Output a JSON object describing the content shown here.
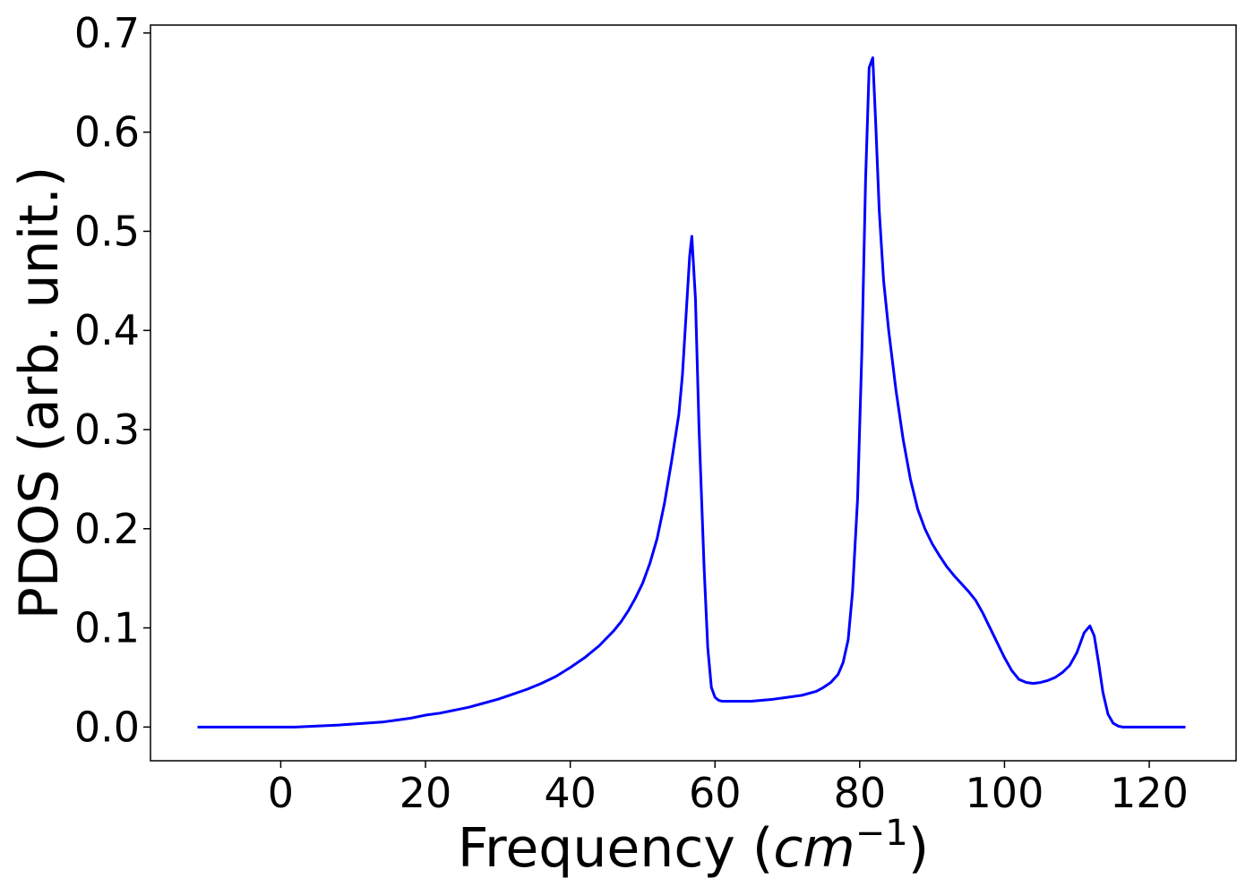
{
  "chart_data": {
    "type": "line",
    "title": "",
    "xlabel": {
      "text": "Frequency (",
      "italic": "cm",
      "superscript": "−1",
      "close": ")"
    },
    "ylabel": "PDOS (arb. unit.)",
    "xlim": [
      -18,
      132
    ],
    "ylim": [
      -0.034,
      0.708
    ],
    "x_ticks": [
      0,
      20,
      40,
      60,
      80,
      100,
      120
    ],
    "x_tick_labels": [
      "0",
      "20",
      "40",
      "60",
      "80",
      "100",
      "120"
    ],
    "y_ticks": [
      0.0,
      0.1,
      0.2,
      0.3,
      0.4,
      0.5,
      0.6,
      0.7
    ],
    "y_tick_labels": [
      "0.0",
      "0.1",
      "0.2",
      "0.3",
      "0.4",
      "0.5",
      "0.6",
      "0.7"
    ],
    "grid": false,
    "legend": "none",
    "series": [
      {
        "color": "#0000ff",
        "x": [
          -11.5,
          0,
          2,
          5,
          8,
          10,
          12,
          14,
          16,
          18,
          20,
          22,
          24,
          26,
          28,
          30,
          32,
          34,
          36,
          38,
          40,
          42,
          44,
          46,
          47,
          48,
          49,
          50,
          51,
          52,
          53,
          54,
          55,
          55.5,
          56,
          56.5,
          56.8,
          57.3,
          57.8,
          58.5,
          59,
          59.5,
          60,
          60.5,
          61,
          62,
          65,
          68,
          70,
          72,
          74,
          75,
          76,
          77,
          77.7,
          78.4,
          79,
          79.7,
          80.3,
          80.8,
          81.3,
          81.8,
          82.2,
          82.7,
          83.3,
          84,
          85,
          86,
          87,
          88,
          89,
          90,
          91,
          92,
          93,
          94,
          95,
          96,
          97,
          98,
          99,
          100,
          101,
          102,
          103,
          104,
          105,
          106,
          107,
          108,
          109,
          110,
          111,
          111.8,
          112.4,
          113,
          113.6,
          114.3,
          115,
          115.7,
          116.3,
          117,
          118,
          120,
          125
        ],
        "y": [
          0.0,
          0.0,
          0.0,
          0.001,
          0.002,
          0.003,
          0.004,
          0.005,
          0.007,
          0.009,
          0.012,
          0.014,
          0.017,
          0.02,
          0.024,
          0.028,
          0.033,
          0.038,
          0.044,
          0.051,
          0.06,
          0.07,
          0.082,
          0.097,
          0.106,
          0.117,
          0.13,
          0.145,
          0.165,
          0.19,
          0.225,
          0.268,
          0.315,
          0.355,
          0.415,
          0.475,
          0.495,
          0.432,
          0.3,
          0.16,
          0.08,
          0.04,
          0.03,
          0.027,
          0.026,
          0.026,
          0.026,
          0.028,
          0.03,
          0.032,
          0.036,
          0.04,
          0.045,
          0.053,
          0.065,
          0.088,
          0.136,
          0.23,
          0.38,
          0.55,
          0.665,
          0.675,
          0.61,
          0.52,
          0.45,
          0.4,
          0.34,
          0.29,
          0.25,
          0.22,
          0.2,
          0.185,
          0.173,
          0.162,
          0.153,
          0.145,
          0.137,
          0.128,
          0.115,
          0.1,
          0.085,
          0.07,
          0.057,
          0.048,
          0.045,
          0.044,
          0.045,
          0.047,
          0.05,
          0.055,
          0.062,
          0.075,
          0.095,
          0.102,
          0.092,
          0.065,
          0.035,
          0.013,
          0.004,
          0.001,
          0.0,
          0.0,
          0.0,
          0.0,
          0.0
        ]
      }
    ]
  }
}
